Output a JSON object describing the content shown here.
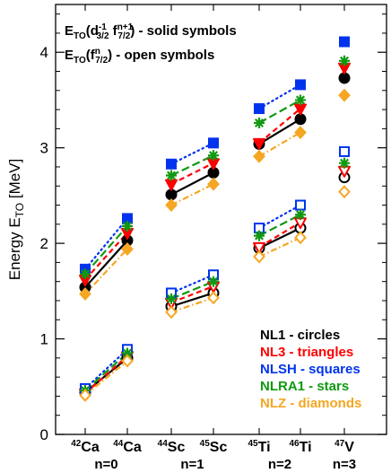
{
  "chart_data": {
    "type": "scatter",
    "ylabel": {
      "main": "Energy  E",
      "sub": "TO",
      "unit": " [MeV]"
    },
    "ylim": [
      0,
      4.5
    ],
    "yticks": [
      "0",
      "1",
      "2",
      "3",
      "4"
    ],
    "categories": [
      {
        "pre": "42",
        "sym": "Ca"
      },
      {
        "pre": "44",
        "sym": "Ca"
      },
      {
        "pre": "44",
        "sym": "Sc"
      },
      {
        "pre": "45",
        "sym": "Sc"
      },
      {
        "pre": "45",
        "sym": "Ti"
      },
      {
        "pre": "46",
        "sym": "Ti"
      },
      {
        "pre": "47",
        "sym": "V"
      }
    ],
    "groups": [
      "n=0",
      "n=1",
      "n=2",
      "n=3"
    ],
    "notes": [
      {
        "parts": [
          "E",
          "TO",
          "(d",
          "-1",
          "3/2",
          " f",
          "n+1",
          "7/2",
          ") - solid symbols"
        ]
      },
      {
        "parts": [
          "E",
          "TO",
          "(f",
          "n",
          "7/2",
          ") - open symbols"
        ]
      }
    ],
    "legend_position": "bottom-right",
    "series": [
      {
        "name": "NL1 - circles",
        "color": "#000000",
        "marker": "circle",
        "dash": "solid",
        "solid": [
          1.54,
          2.03,
          2.51,
          2.74,
          3.04,
          3.3,
          3.73
        ],
        "open": [
          0.44,
          0.8,
          1.34,
          1.48,
          1.95,
          2.16,
          2.69
        ]
      },
      {
        "name": "NL3 - triangles",
        "color": "#ff0000",
        "marker": "triangle",
        "dash": "6,4",
        "solid": [
          1.62,
          2.11,
          2.62,
          2.84,
          3.05,
          3.41,
          3.84
        ],
        "open": [
          0.43,
          0.82,
          1.38,
          1.55,
          1.96,
          2.22,
          2.76
        ]
      },
      {
        "name": "NLSH - squares",
        "color": "#0033ee",
        "marker": "square",
        "dash": "1.5,4",
        "solid": [
          1.73,
          2.26,
          2.83,
          3.05,
          3.41,
          3.66,
          4.11
        ],
        "open": [
          0.48,
          0.89,
          1.48,
          1.67,
          2.16,
          2.4,
          2.96
        ]
      },
      {
        "name": "NLRA1 - stars",
        "color": "#119911",
        "marker": "star",
        "dash": "9,4",
        "solid": [
          1.68,
          2.18,
          2.71,
          2.92,
          3.26,
          3.5,
          3.91
        ],
        "open": [
          0.46,
          0.85,
          1.42,
          1.6,
          2.08,
          2.3,
          2.84
        ]
      },
      {
        "name": "NLZ - diamonds",
        "color": "#f5a623",
        "marker": "diamond",
        "dash": "7,3,1.5,3",
        "solid": [
          1.47,
          1.94,
          2.4,
          2.62,
          2.91,
          3.16,
          3.55
        ],
        "open": [
          0.41,
          0.77,
          1.28,
          1.43,
          1.86,
          2.06,
          2.54
        ]
      }
    ]
  }
}
